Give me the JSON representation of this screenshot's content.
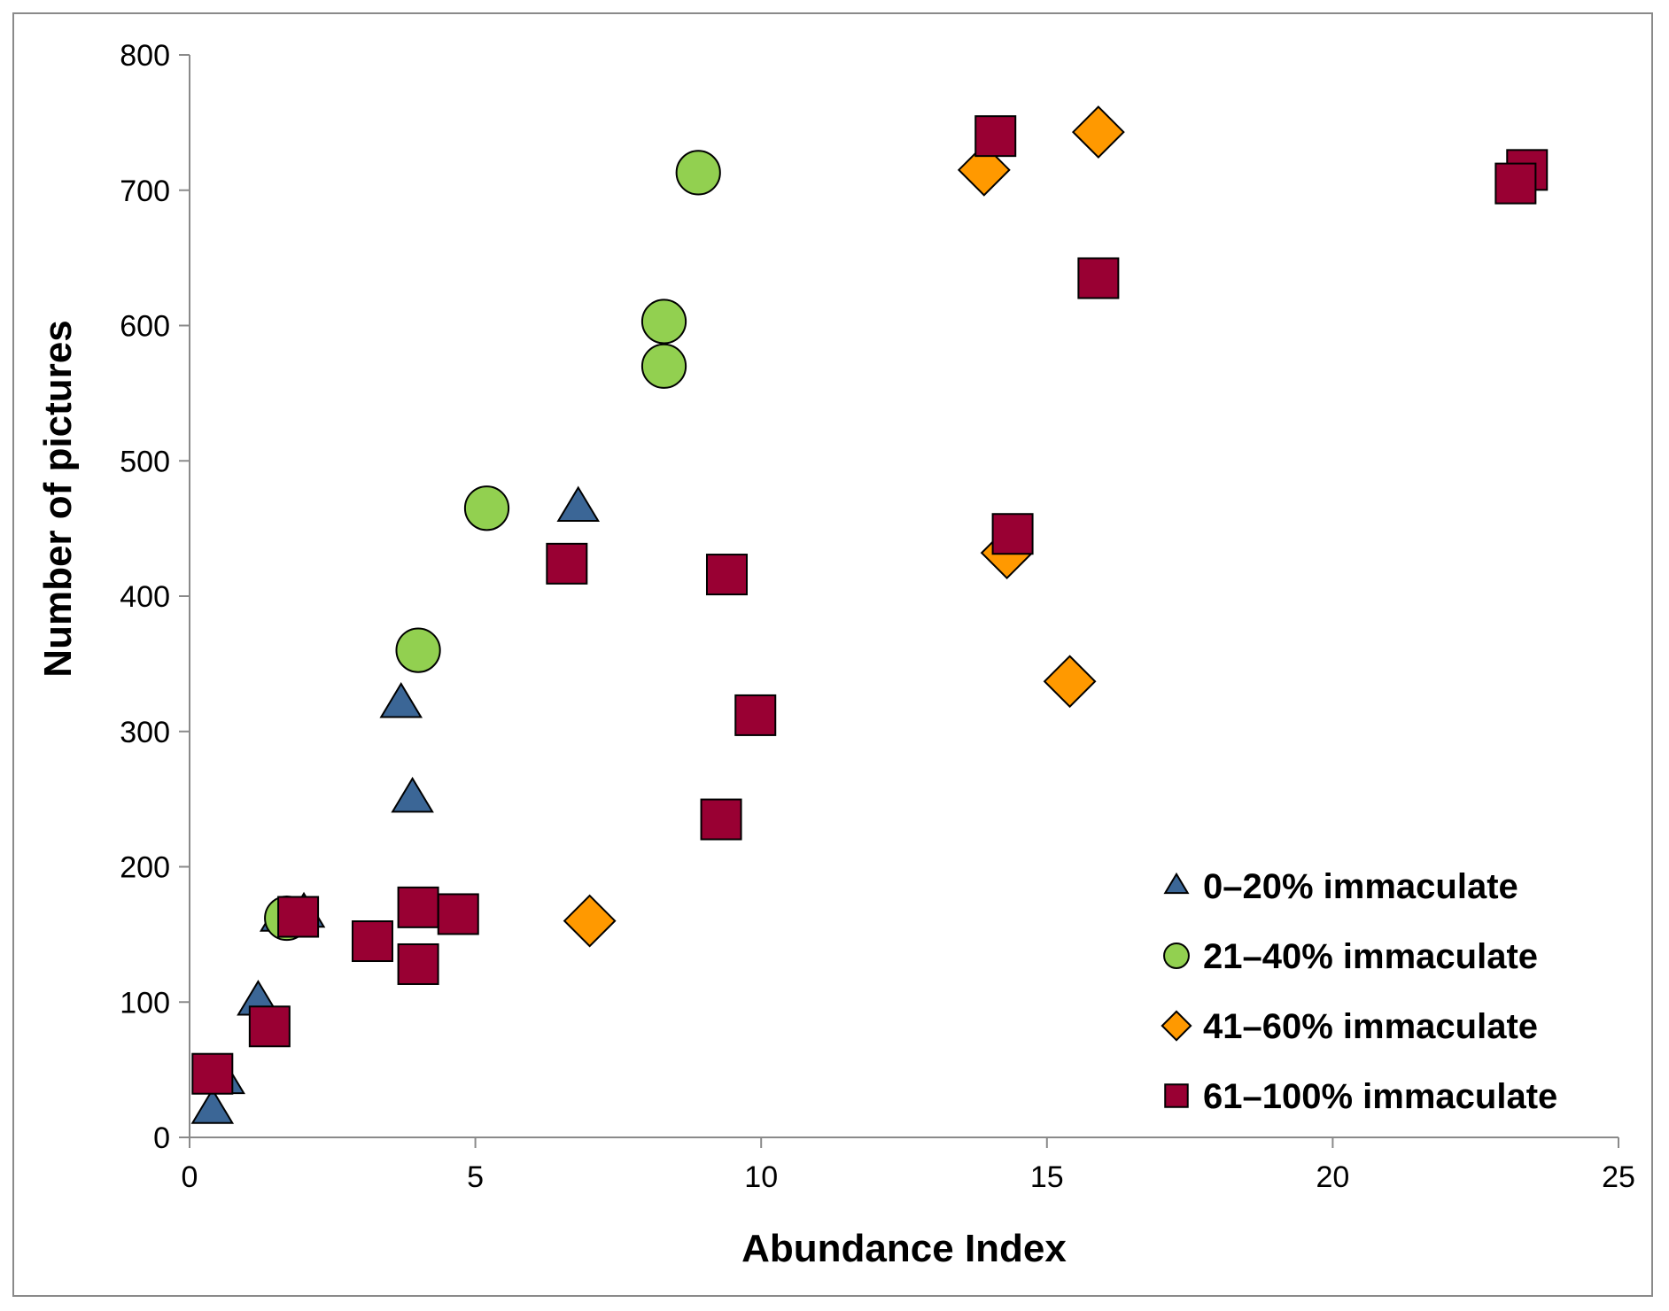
{
  "chart_data": {
    "type": "scatter",
    "title": "",
    "xlabel": "Abundance Index",
    "ylabel": "Number of pictures",
    "xlim": [
      0,
      25
    ],
    "ylim": [
      0,
      800
    ],
    "xticks": [
      0,
      5,
      10,
      15,
      20,
      25
    ],
    "yticks": [
      0,
      100,
      200,
      300,
      400,
      500,
      600,
      700,
      800
    ],
    "grid": false,
    "legend_position": "bottom-right",
    "series": [
      {
        "name": "0–20% immaculate",
        "marker": "triangle",
        "color": "#3b6696",
        "points": [
          [
            0.4,
            20
          ],
          [
            0.6,
            42
          ],
          [
            1.2,
            100
          ],
          [
            1.6,
            162
          ],
          [
            2.0,
            165
          ],
          [
            3.7,
            320
          ],
          [
            3.9,
            250
          ],
          [
            6.8,
            465
          ]
        ]
      },
      {
        "name": "21–40% immaculate",
        "marker": "circle",
        "color": "#92d050",
        "points": [
          [
            1.7,
            162
          ],
          [
            4.0,
            360
          ],
          [
            5.2,
            465
          ],
          [
            8.3,
            603
          ],
          [
            8.3,
            570
          ],
          [
            8.9,
            713
          ]
        ]
      },
      {
        "name": "41–60% immaculate",
        "marker": "diamond",
        "color": "#ff9900",
        "points": [
          [
            7.0,
            160
          ],
          [
            13.9,
            715
          ],
          [
            14.3,
            432
          ],
          [
            15.4,
            337
          ],
          [
            15.9,
            743
          ]
        ]
      },
      {
        "name": "61–100% immaculate",
        "marker": "square",
        "color": "#990033",
        "points": [
          [
            0.4,
            47
          ],
          [
            1.4,
            82
          ],
          [
            1.9,
            163
          ],
          [
            3.2,
            145
          ],
          [
            4.0,
            170
          ],
          [
            4.0,
            128
          ],
          [
            4.7,
            165
          ],
          [
            6.6,
            424
          ],
          [
            9.3,
            235
          ],
          [
            9.4,
            416
          ],
          [
            9.9,
            312
          ],
          [
            14.1,
            740
          ],
          [
            14.4,
            446
          ],
          [
            15.9,
            635
          ],
          [
            23.4,
            715
          ],
          [
            23.2,
            705
          ]
        ]
      }
    ]
  }
}
